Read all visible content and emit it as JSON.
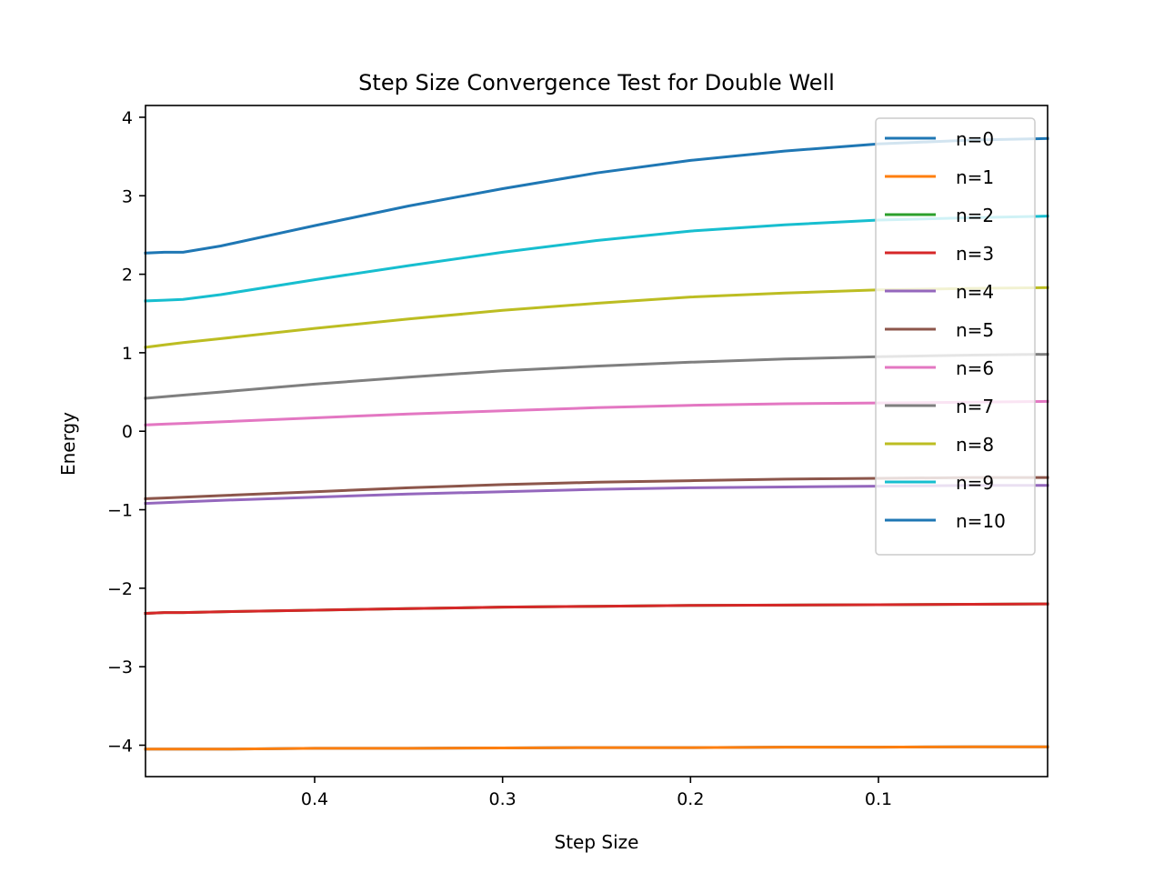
{
  "chart_data": {
    "type": "line",
    "title": "Step Size Convergence Test for Double Well",
    "xlabel": "Step Size",
    "ylabel": "Energy",
    "x_axis_inverted": true,
    "xlim": [
      0.49,
      0.01
    ],
    "ylim": [
      -4.4,
      4.15
    ],
    "x_ticks": [
      0.4,
      0.3,
      0.2,
      0.1
    ],
    "x_tick_labels": [
      "0.4",
      "0.3",
      "0.2",
      "0.1"
    ],
    "y_ticks": [
      4,
      3,
      2,
      1,
      0,
      -1,
      -2,
      -3,
      -4
    ],
    "y_tick_labels": [
      "4",
      "3",
      "2",
      "1",
      "0",
      "−1",
      "−2",
      "−3",
      "−4"
    ],
    "grid": false,
    "legend_position": "top-right",
    "x": [
      0.49,
      0.48,
      0.47,
      0.45,
      0.4,
      0.35,
      0.3,
      0.25,
      0.2,
      0.15,
      0.1,
      0.05,
      0.01
    ],
    "series": [
      {
        "name": "n=0",
        "color": "#1f77b4",
        "values": [
          -4.05,
          -4.05,
          -4.05,
          -4.05,
          -4.04,
          -4.04,
          -4.035,
          -4.03,
          -4.03,
          -4.025,
          -4.025,
          -4.02,
          -4.02
        ]
      },
      {
        "name": "n=1",
        "color": "#ff7f0e",
        "values": [
          -4.05,
          -4.05,
          -4.05,
          -4.05,
          -4.04,
          -4.04,
          -4.035,
          -4.03,
          -4.03,
          -4.025,
          -4.025,
          -4.02,
          -4.02
        ]
      },
      {
        "name": "n=2",
        "color": "#2ca02c",
        "values": [
          -2.32,
          -2.31,
          -2.31,
          -2.3,
          -2.28,
          -2.26,
          -2.24,
          -2.23,
          -2.22,
          -2.215,
          -2.21,
          -2.205,
          -2.2
        ]
      },
      {
        "name": "n=3",
        "color": "#d62728",
        "values": [
          -2.32,
          -2.31,
          -2.31,
          -2.3,
          -2.28,
          -2.26,
          -2.24,
          -2.23,
          -2.22,
          -2.215,
          -2.21,
          -2.205,
          -2.2
        ]
      },
      {
        "name": "n=4",
        "color": "#9467bd",
        "values": [
          -0.92,
          -0.91,
          -0.9,
          -0.88,
          -0.84,
          -0.8,
          -0.77,
          -0.74,
          -0.72,
          -0.71,
          -0.7,
          -0.69,
          -0.69
        ]
      },
      {
        "name": "n=5",
        "color": "#8c564b",
        "values": [
          -0.86,
          -0.85,
          -0.84,
          -0.82,
          -0.77,
          -0.72,
          -0.68,
          -0.65,
          -0.63,
          -0.61,
          -0.6,
          -0.59,
          -0.59
        ]
      },
      {
        "name": "n=6",
        "color": "#e377c2",
        "values": [
          0.08,
          0.09,
          0.1,
          0.12,
          0.17,
          0.22,
          0.26,
          0.3,
          0.33,
          0.35,
          0.36,
          0.37,
          0.38
        ]
      },
      {
        "name": "n=7",
        "color": "#7f7f7f",
        "values": [
          0.42,
          0.44,
          0.46,
          0.5,
          0.6,
          0.69,
          0.77,
          0.83,
          0.88,
          0.92,
          0.95,
          0.97,
          0.98
        ]
      },
      {
        "name": "n=8",
        "color": "#bcbd22",
        "values": [
          1.07,
          1.1,
          1.13,
          1.18,
          1.31,
          1.43,
          1.54,
          1.63,
          1.71,
          1.76,
          1.8,
          1.82,
          1.83
        ]
      },
      {
        "name": "n=9",
        "color": "#17becf",
        "values": [
          1.66,
          1.67,
          1.68,
          1.74,
          1.93,
          2.11,
          2.28,
          2.43,
          2.55,
          2.63,
          2.69,
          2.72,
          2.74
        ]
      },
      {
        "name": "n=10",
        "color": "#1f77b4",
        "values": [
          2.27,
          2.28,
          2.28,
          2.36,
          2.62,
          2.87,
          3.09,
          3.29,
          3.45,
          3.57,
          3.66,
          3.71,
          3.73
        ]
      }
    ]
  }
}
